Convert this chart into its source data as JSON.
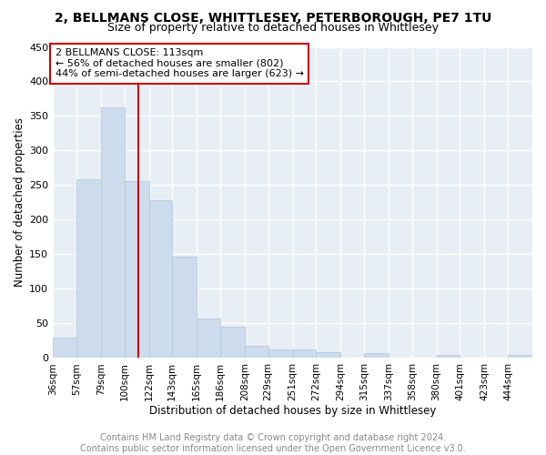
{
  "title": "2, BELLMANS CLOSE, WHITTLESEY, PETERBOROUGH, PE7 1TU",
  "subtitle": "Size of property relative to detached houses in Whittlesey",
  "xlabel": "Distribution of detached houses by size in Whittlesey",
  "ylabel": "Number of detached properties",
  "footer": "Contains HM Land Registry data © Crown copyright and database right 2024.\nContains public sector information licensed under the Open Government Licence v3.0.",
  "annotation_line1": "2 BELLMANS CLOSE: 113sqm",
  "annotation_line2": "← 56% of detached houses are smaller (802)",
  "annotation_line3": "44% of semi-detached houses are larger (623) →",
  "property_size": 113,
  "bar_color": "#cddcec",
  "bar_edge_color": "#afc4da",
  "vline_color": "#cc0000",
  "annotation_box_color": "#cc0000",
  "bins": [
    36,
    57,
    79,
    100,
    122,
    143,
    165,
    186,
    208,
    229,
    251,
    272,
    294,
    315,
    337,
    358,
    380,
    401,
    423,
    444,
    466
  ],
  "counts": [
    30,
    259,
    362,
    256,
    228,
    147,
    57,
    45,
    18,
    12,
    12,
    8,
    0,
    7,
    0,
    0,
    4,
    0,
    0,
    4
  ],
  "ylim": [
    0,
    450
  ],
  "yticks": [
    0,
    50,
    100,
    150,
    200,
    250,
    300,
    350,
    400,
    450
  ],
  "bg_color": "#e8eef5",
  "grid_color": "#ffffff",
  "title_fontsize": 10,
  "subtitle_fontsize": 9,
  "axis_label_fontsize": 8.5,
  "tick_fontsize": 7.5,
  "footer_fontsize": 7
}
